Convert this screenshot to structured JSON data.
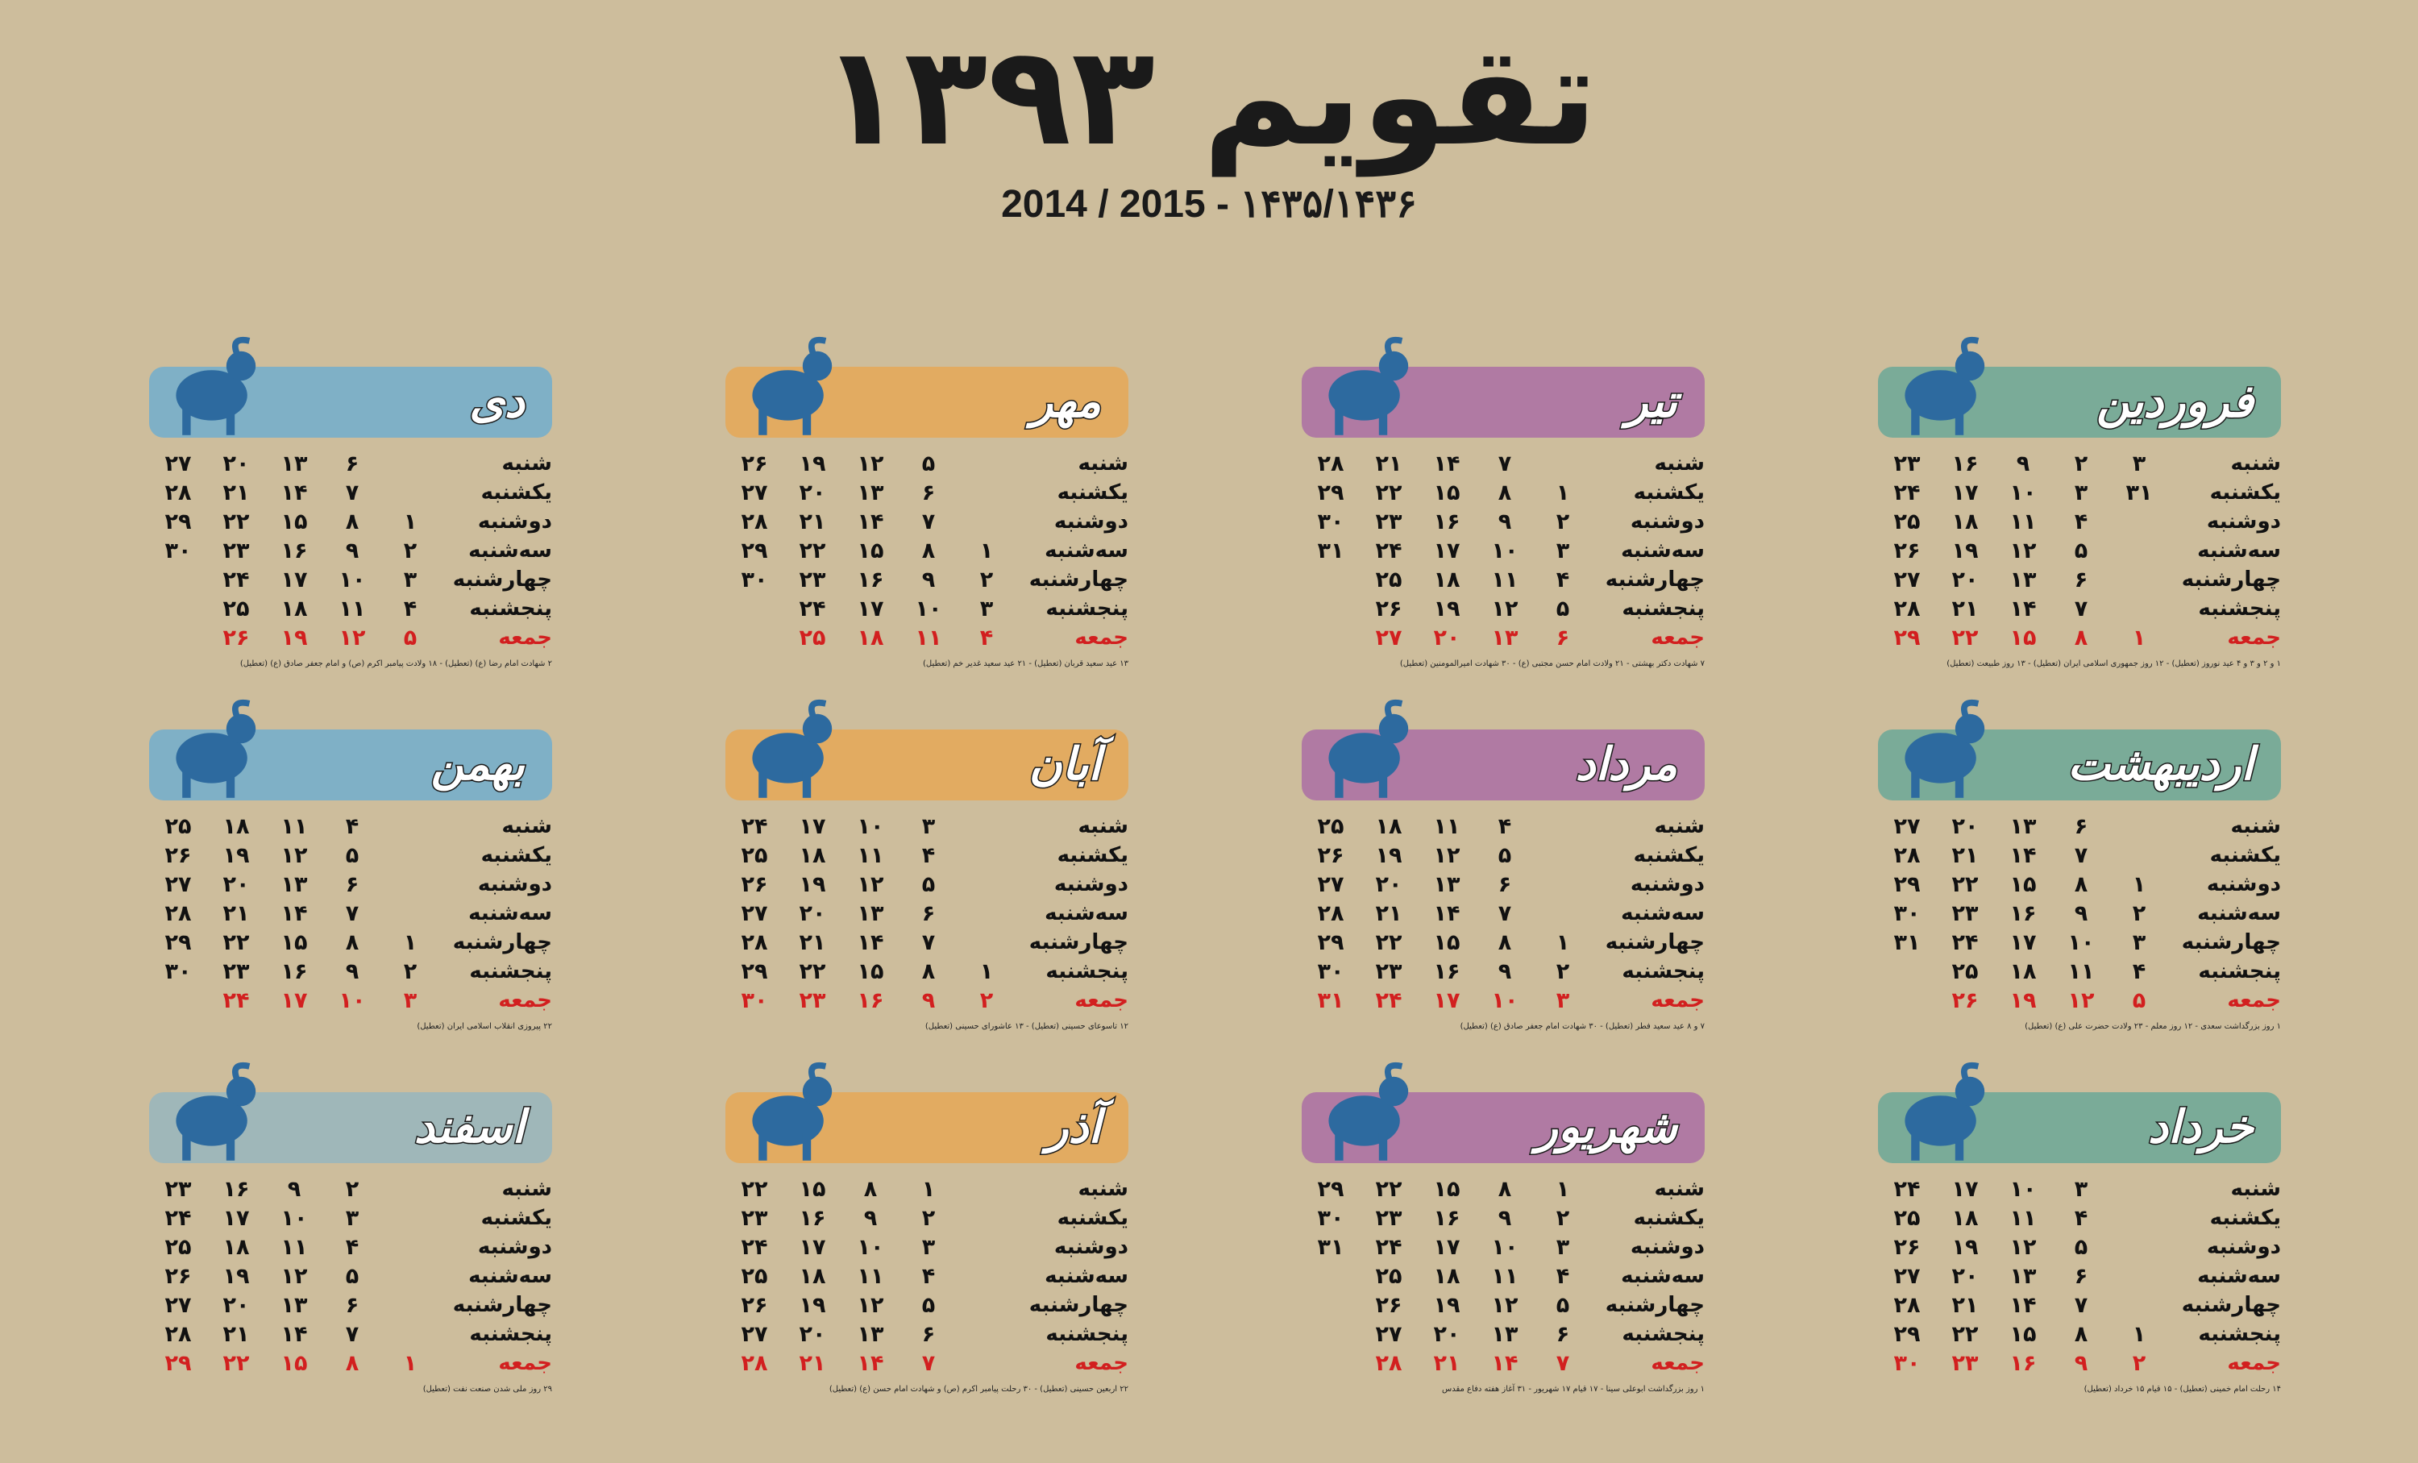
{
  "title": "تقویم ۱۳۹۳",
  "subtitle": "2014 / 2015  -  ۱۴۳۵/۱۴۳۶",
  "colors": {
    "background": "#cdbd9c",
    "spring": "#7aab98",
    "summer": "#b07aa3",
    "autumn": "#e2ab61",
    "winter": "#7fb0c6",
    "esfand": "#9fb7b9",
    "zodiac": "#2d6a9f",
    "holiday": "#d21f1f"
  },
  "months": [
    {
      "key": "farvardin",
      "name": "فروردین",
      "color": "#7aab98",
      "zodiac_icon": "aries-ram-icon",
      "days": [
        "شنبه",
        "یکشنبه",
        "دوشنبه",
        "سه‌شنبه",
        "چهارشنبه",
        "پنجشنبه",
        "جمعه"
      ],
      "cols": [
        [
          "۲",
          "۳",
          "۴",
          "۵",
          "۶",
          "۷",
          "۸"
        ],
        [
          "۹",
          "۱۰",
          "۱۱",
          "۱۲",
          "۱۳",
          "۱۴",
          "۱۵"
        ],
        [
          "۱۶",
          "۱۷",
          "۱۸",
          "۱۹",
          "۲۰",
          "۲۱",
          "۲۲"
        ],
        [
          "۲۳",
          "۲۴",
          "۲۵",
          "۲۶",
          "۲۷",
          "۲۸",
          "۲۹"
        ]
      ],
      "first_col": {
        "0": "۳",
        "1": "۳۱",
        "6": "۱"
      },
      "notes": "۱ و ۲ و ۳ و ۴ عید نوروز (تعطیل) - ۱۲ روز جمهوری اسلامی ایران (تعطیل) - ۱۳ روز طبیعت (تعطیل)"
    },
    {
      "key": "ordibehesht",
      "name": "اردیبهشت",
      "color": "#7aab98",
      "zodiac_icon": "taurus-bull-icon",
      "days": [
        "شنبه",
        "یکشنبه",
        "دوشنبه",
        "سه‌شنبه",
        "چهارشنبه",
        "پنجشنبه",
        "جمعه"
      ],
      "cols": [
        [
          "۶",
          "۷",
          "۸",
          "۹",
          "۱۰",
          "۱۱",
          "۱۲"
        ],
        [
          "۱۳",
          "۱۴",
          "۱۵",
          "۱۶",
          "۱۷",
          "۱۸",
          "۱۹"
        ],
        [
          "۲۰",
          "۲۱",
          "۲۲",
          "۲۳",
          "۲۴",
          "۲۵",
          "۲۶"
        ],
        [
          "۲۷",
          "۲۸",
          "۲۹",
          "۳۰",
          "۳۱",
          "",
          ""
        ]
      ],
      "first_col": {
        "2": "۱",
        "3": "۲",
        "4": "۳",
        "5": "۴",
        "6": "۵"
      },
      "notes": "۱ روز بزرگداشت سعدی - ۱۲ روز معلم - ۲۳ ولادت حضرت علی (ع) (تعطیل)"
    },
    {
      "key": "khordad",
      "name": "خرداد",
      "color": "#7aab98",
      "zodiac_icon": "gemini-twins-icon",
      "days": [
        "شنبه",
        "یکشنبه",
        "دوشنبه",
        "سه‌شنبه",
        "چهارشنبه",
        "پنجشنبه",
        "جمعه"
      ],
      "cols": [
        [
          "۳",
          "۴",
          "۵",
          "۶",
          "۷",
          "۸",
          "۹"
        ],
        [
          "۱۰",
          "۱۱",
          "۱۲",
          "۱۳",
          "۱۴",
          "۱۵",
          "۱۶"
        ],
        [
          "۱۷",
          "۱۸",
          "۱۹",
          "۲۰",
          "۲۱",
          "۲۲",
          "۲۳"
        ],
        [
          "۲۴",
          "۲۵",
          "۲۶",
          "۲۷",
          "۲۸",
          "۲۹",
          "۳۰"
        ]
      ],
      "first_col": {
        "5": "۱",
        "6": "۲"
      },
      "notes": "۱۴ رحلت امام خمینی (تعطیل) - ۱۵ قیام ۱۵ خرداد (تعطیل)"
    },
    {
      "key": "tir",
      "name": "تیر",
      "color": "#b07aa3",
      "zodiac_icon": "cancer-crab-icon",
      "days": [
        "شنبه",
        "یکشنبه",
        "دوشنبه",
        "سه‌شنبه",
        "چهارشنبه",
        "پنجشنبه",
        "جمعه"
      ],
      "cols": [
        [
          "۷",
          "۸",
          "۹",
          "۱۰",
          "۱۱",
          "۱۲",
          "۱۳"
        ],
        [
          "۱۴",
          "۱۵",
          "۱۶",
          "۱۷",
          "۱۸",
          "۱۹",
          "۲۰"
        ],
        [
          "۲۱",
          "۲۲",
          "۲۳",
          "۲۴",
          "۲۵",
          "۲۶",
          "۲۷"
        ],
        [
          "۲۸",
          "۲۹",
          "۳۰",
          "۳۱",
          "",
          "",
          ""
        ]
      ],
      "first_col": {
        "1": "۱",
        "2": "۲",
        "3": "۳",
        "4": "۴",
        "5": "۵",
        "6": "۶"
      },
      "notes": "۷ شهادت دکتر بهشتی - ۲۱ ولادت امام حسن مجتبی (ع) - ۳۰ شهادت امیرالمومنین (تعطیل)"
    },
    {
      "key": "mordad",
      "name": "مرداد",
      "color": "#b07aa3",
      "zodiac_icon": "leo-lion-icon",
      "days": [
        "شنبه",
        "یکشنبه",
        "دوشنبه",
        "سه‌شنبه",
        "چهارشنبه",
        "پنجشنبه",
        "جمعه"
      ],
      "cols": [
        [
          "۴",
          "۵",
          "۶",
          "۷",
          "۸",
          "۹",
          "۱۰"
        ],
        [
          "۱۱",
          "۱۲",
          "۱۳",
          "۱۴",
          "۱۵",
          "۱۶",
          "۱۷"
        ],
        [
          "۱۸",
          "۱۹",
          "۲۰",
          "۲۱",
          "۲۲",
          "۲۳",
          "۲۴"
        ],
        [
          "۲۵",
          "۲۶",
          "۲۷",
          "۲۸",
          "۲۹",
          "۳۰",
          "۳۱"
        ]
      ],
      "first_col": {
        "4": "۱",
        "5": "۲",
        "6": "۳"
      },
      "notes": "۷ و ۸ عید سعید فطر (تعطیل) - ۳۰ شهادت امام جعفر صادق (ع) (تعطیل)"
    },
    {
      "key": "shahrivar",
      "name": "شهریور",
      "color": "#b07aa3",
      "zodiac_icon": "virgo-maiden-icon",
      "days": [
        "شنبه",
        "یکشنبه",
        "دوشنبه",
        "سه‌شنبه",
        "چهارشنبه",
        "پنجشنبه",
        "جمعه"
      ],
      "cols": [
        [
          "۸",
          "۹",
          "۱۰",
          "۱۱",
          "۱۲",
          "۱۳",
          "۱۴"
        ],
        [
          "۱۵",
          "۱۶",
          "۱۷",
          "۱۸",
          "۱۹",
          "۲۰",
          "۲۱"
        ],
        [
          "۲۲",
          "۲۳",
          "۲۴",
          "۲۵",
          "۲۶",
          "۲۷",
          "۲۸"
        ],
        [
          "۲۹",
          "۳۰",
          "۳۱",
          "",
          "",
          "",
          ""
        ]
      ],
      "first_col": {
        "0": "۱",
        "1": "۲",
        "2": "۳",
        "3": "۴",
        "4": "۵",
        "5": "۶",
        "6": "۷"
      },
      "notes": "۱ روز بزرگداشت ابوعلی سینا - ۱۷ قیام ۱۷ شهریور - ۳۱ آغاز هفته دفاع مقدس"
    },
    {
      "key": "mehr",
      "name": "مهر",
      "color": "#e2ab61",
      "zodiac_icon": "libra-scales-icon",
      "days": [
        "شنبه",
        "یکشنبه",
        "دوشنبه",
        "سه‌شنبه",
        "چهارشنبه",
        "پنجشنبه",
        "جمعه"
      ],
      "cols": [
        [
          "۵",
          "۶",
          "۷",
          "۸",
          "۹",
          "۱۰",
          "۱۱"
        ],
        [
          "۱۲",
          "۱۳",
          "۱۴",
          "۱۵",
          "۱۶",
          "۱۷",
          "۱۸"
        ],
        [
          "۱۹",
          "۲۰",
          "۲۱",
          "۲۲",
          "۲۳",
          "۲۴",
          "۲۵"
        ],
        [
          "۲۶",
          "۲۷",
          "۲۸",
          "۲۹",
          "۳۰",
          "",
          ""
        ]
      ],
      "first_col": {
        "3": "۱",
        "4": "۲",
        "5": "۳",
        "6": "۴"
      },
      "notes": "۱۳ عید سعید قربان (تعطیل) - ۲۱ عید سعید غدیر خم (تعطیل)"
    },
    {
      "key": "aban",
      "name": "آبان",
      "color": "#e2ab61",
      "zodiac_icon": "scorpio-scorpion-icon",
      "days": [
        "شنبه",
        "یکشنبه",
        "دوشنبه",
        "سه‌شنبه",
        "چهارشنبه",
        "پنجشنبه",
        "جمعه"
      ],
      "cols": [
        [
          "۳",
          "۴",
          "۵",
          "۶",
          "۷",
          "۸",
          "۹"
        ],
        [
          "۱۰",
          "۱۱",
          "۱۲",
          "۱۳",
          "۱۴",
          "۱۵",
          "۱۶"
        ],
        [
          "۱۷",
          "۱۸",
          "۱۹",
          "۲۰",
          "۲۱",
          "۲۲",
          "۲۳"
        ],
        [
          "۲۴",
          "۲۵",
          "۲۶",
          "۲۷",
          "۲۸",
          "۲۹",
          "۳۰"
        ]
      ],
      "first_col": {
        "5": "۱",
        "6": "۲"
      },
      "notes": "۱۲ تاسوعای حسینی (تعطیل) - ۱۳ عاشورای حسینی (تعطیل)"
    },
    {
      "key": "azar",
      "name": "آذر",
      "color": "#e2ab61",
      "zodiac_icon": "sagittarius-archer-icon",
      "days": [
        "شنبه",
        "یکشنبه",
        "دوشنبه",
        "سه‌شنبه",
        "چهارشنبه",
        "پنجشنبه",
        "جمعه"
      ],
      "cols": [
        [
          "۱",
          "۲",
          "۳",
          "۴",
          "۵",
          "۶",
          "۷"
        ],
        [
          "۸",
          "۹",
          "۱۰",
          "۱۱",
          "۱۲",
          "۱۳",
          "۱۴"
        ],
        [
          "۱۵",
          "۱۶",
          "۱۷",
          "۱۸",
          "۱۹",
          "۲۰",
          "۲۱"
        ],
        [
          "۲۲",
          "۲۳",
          "۲۴",
          "۲۵",
          "۲۶",
          "۲۷",
          "۲۸"
        ]
      ],
      "first_col": {},
      "notes": "۲۲ اربعین حسینی (تعطیل) - ۳۰ رحلت پیامبر اکرم (ص) و شهادت امام حسن (ع) (تعطیل)"
    },
    {
      "key": "dey",
      "name": "دی",
      "color": "#7fb0c6",
      "zodiac_icon": "capricorn-goat-icon",
      "days": [
        "شنبه",
        "یکشنبه",
        "دوشنبه",
        "سه‌شنبه",
        "چهارشنبه",
        "پنجشنبه",
        "جمعه"
      ],
      "cols": [
        [
          "۶",
          "۷",
          "۸",
          "۹",
          "۱۰",
          "۱۱",
          "۱۲"
        ],
        [
          "۱۳",
          "۱۴",
          "۱۵",
          "۱۶",
          "۱۷",
          "۱۸",
          "۱۹"
        ],
        [
          "۲۰",
          "۲۱",
          "۲۲",
          "۲۳",
          "۲۴",
          "۲۵",
          "۲۶"
        ],
        [
          "۲۷",
          "۲۸",
          "۲۹",
          "۳۰",
          "",
          "",
          ""
        ]
      ],
      "first_col": {
        "2": "۱",
        "3": "۲",
        "4": "۳",
        "5": "۴",
        "6": "۵"
      },
      "notes": "۲ شهادت امام رضا (ع) (تعطیل) - ۱۸ ولادت پیامبر اکرم (ص) و امام جعفر صادق (ع) (تعطیل)"
    },
    {
      "key": "bahman",
      "name": "بهمن",
      "color": "#7fb0c6",
      "zodiac_icon": "aquarius-water-bearer-icon",
      "days": [
        "شنبه",
        "یکشنبه",
        "دوشنبه",
        "سه‌شنبه",
        "چهارشنبه",
        "پنجشنبه",
        "جمعه"
      ],
      "cols": [
        [
          "۴",
          "۵",
          "۶",
          "۷",
          "۸",
          "۹",
          "۱۰"
        ],
        [
          "۱۱",
          "۱۲",
          "۱۳",
          "۱۴",
          "۱۵",
          "۱۶",
          "۱۷"
        ],
        [
          "۱۸",
          "۱۹",
          "۲۰",
          "۲۱",
          "۲۲",
          "۲۳",
          "۲۴"
        ],
        [
          "۲۵",
          "۲۶",
          "۲۷",
          "۲۸",
          "۲۹",
          "۳۰",
          ""
        ]
      ],
      "first_col": {
        "4": "۱",
        "5": "۲",
        "6": "۳"
      },
      "notes": "۲۲ پیروزی انقلاب اسلامی ایران (تعطیل)"
    },
    {
      "key": "esfand",
      "name": "اسفند",
      "color": "#9fb7b9",
      "zodiac_icon": "pisces-fish-icon",
      "days": [
        "شنبه",
        "یکشنبه",
        "دوشنبه",
        "سه‌شنبه",
        "چهارشنبه",
        "پنجشنبه",
        "جمعه"
      ],
      "cols": [
        [
          "۲",
          "۳",
          "۴",
          "۵",
          "۶",
          "۷",
          "۸"
        ],
        [
          "۹",
          "۱۰",
          "۱۱",
          "۱۲",
          "۱۳",
          "۱۴",
          "۱۵"
        ],
        [
          "۱۶",
          "۱۷",
          "۱۸",
          "۱۹",
          "۲۰",
          "۲۱",
          "۲۲"
        ],
        [
          "۲۳",
          "۲۴",
          "۲۵",
          "۲۶",
          "۲۷",
          "۲۸",
          "۲۹"
        ]
      ],
      "first_col": {
        "6": "۱"
      },
      "notes": "۲۹ روز ملی شدن صنعت نفت (تعطیل)"
    }
  ]
}
